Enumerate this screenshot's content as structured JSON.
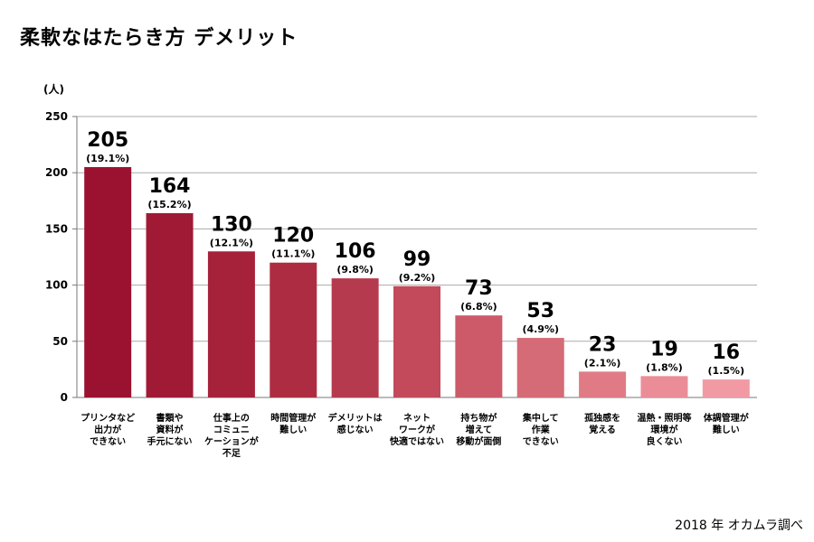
{
  "title": "柔軟なはたらき方 デメリット",
  "source": "2018 年 オカムラ調べ",
  "chart_data": {
    "type": "bar",
    "ylabel": "(人)",
    "ylim": [
      0,
      250
    ],
    "yticks": [
      0,
      50,
      100,
      150,
      200,
      250
    ],
    "grid": true,
    "categories": [
      [
        "プリンタなど",
        "出力が",
        "できない"
      ],
      [
        "書類や",
        "資料が",
        "手元にない"
      ],
      [
        "仕事上の",
        "コミュニ",
        "ケーションが",
        "不足"
      ],
      [
        "時間管理が",
        "難しい"
      ],
      [
        "デメリットは",
        "感じない"
      ],
      [
        "ネット",
        "ワークが",
        "快適ではない"
      ],
      [
        "持ち物が",
        "増えて",
        "移動が面倒"
      ],
      [
        "集中して",
        "作業",
        "できない"
      ],
      [
        "孤独感を",
        "覚える"
      ],
      [
        "温熱・照明等",
        "環境が",
        "良くない"
      ],
      [
        "体調管理が",
        "難しい"
      ]
    ],
    "values": [
      205,
      164,
      130,
      120,
      106,
      99,
      73,
      53,
      23,
      19,
      16
    ],
    "value_labels": [
      "205",
      "164",
      "130",
      "120",
      "106",
      "99",
      "73",
      "53",
      "23",
      "19",
      "16"
    ],
    "percent_labels": [
      "(19.1%)",
      "(15.2%)",
      "(12.1%)",
      "(11.1%)",
      "(9.8%)",
      "(9.2%)",
      "(6.8%)",
      "(4.9%)",
      "(2.1%)",
      "(1.8%)",
      "(1.5%)"
    ],
    "colors": [
      "#9b1230",
      "#a01a36",
      "#a6223b",
      "#ad2c42",
      "#b63a4e",
      "#c24a5a",
      "#cc5a68",
      "#d56b76",
      "#e07b86",
      "#eb8d97",
      "#f29aa4"
    ]
  }
}
